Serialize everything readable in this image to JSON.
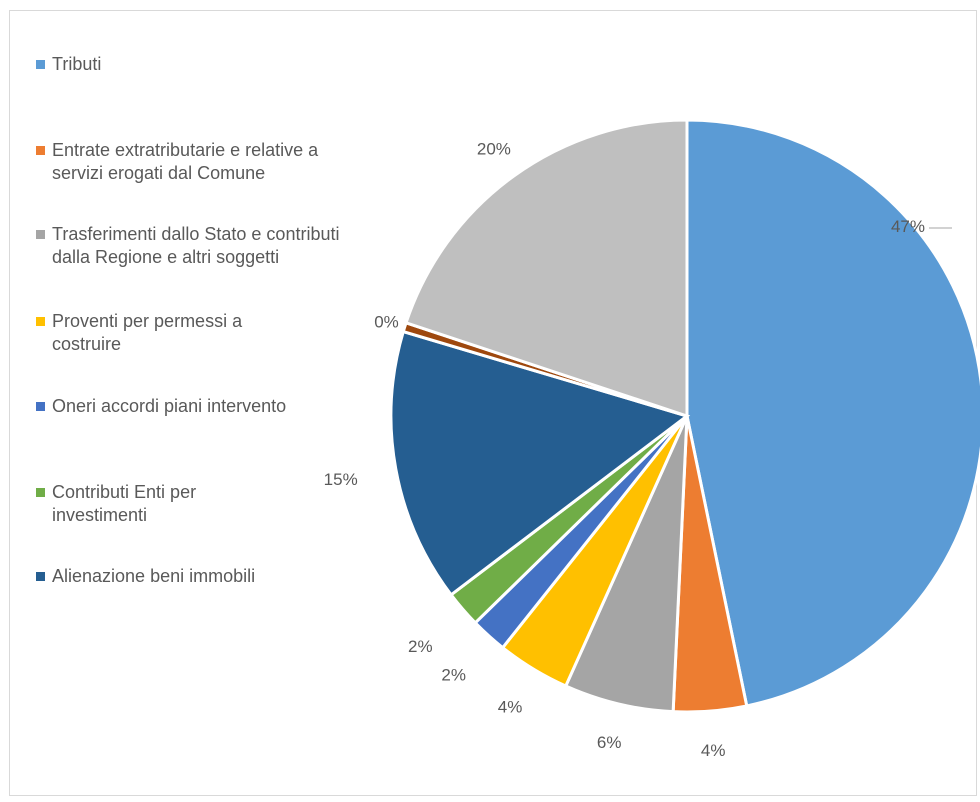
{
  "chart_data": {
    "type": "pie",
    "slices": [
      {
        "label": "Tributi",
        "value": 47,
        "value_label": "47%",
        "color": "#5b9bd5"
      },
      {
        "label": "Entrate extratributarie e relative a servizi erogati dal Comune",
        "value": 4,
        "value_label": "4%",
        "color": "#ed7d31"
      },
      {
        "label": "Trasferimenti dallo Stato e contributi dalla Regione e altri soggetti",
        "value": 6,
        "value_label": "6%",
        "color": "#a5a5a5"
      },
      {
        "label": "Proventi per permessi a costruire",
        "value": 4,
        "value_label": "4%",
        "color": "#ffc000"
      },
      {
        "label": "Oneri accordi piani intervento",
        "value": 2,
        "value_label": "2%",
        "color": "#4472c4"
      },
      {
        "label": "Contributi Enti per investimenti",
        "value": 2,
        "value_label": "2%",
        "color": "#70ad47"
      },
      {
        "label": "Alienazione beni immobili",
        "value": 15,
        "value_label": "15%",
        "color": "#255e91"
      },
      {
        "label": "",
        "value": 0.5,
        "value_label": "0%",
        "color": "#9e480e"
      },
      {
        "label": "",
        "value": 20,
        "value_label": "20%",
        "color": "#bfbfbf"
      }
    ],
    "legend_position": "left",
    "title": ""
  }
}
